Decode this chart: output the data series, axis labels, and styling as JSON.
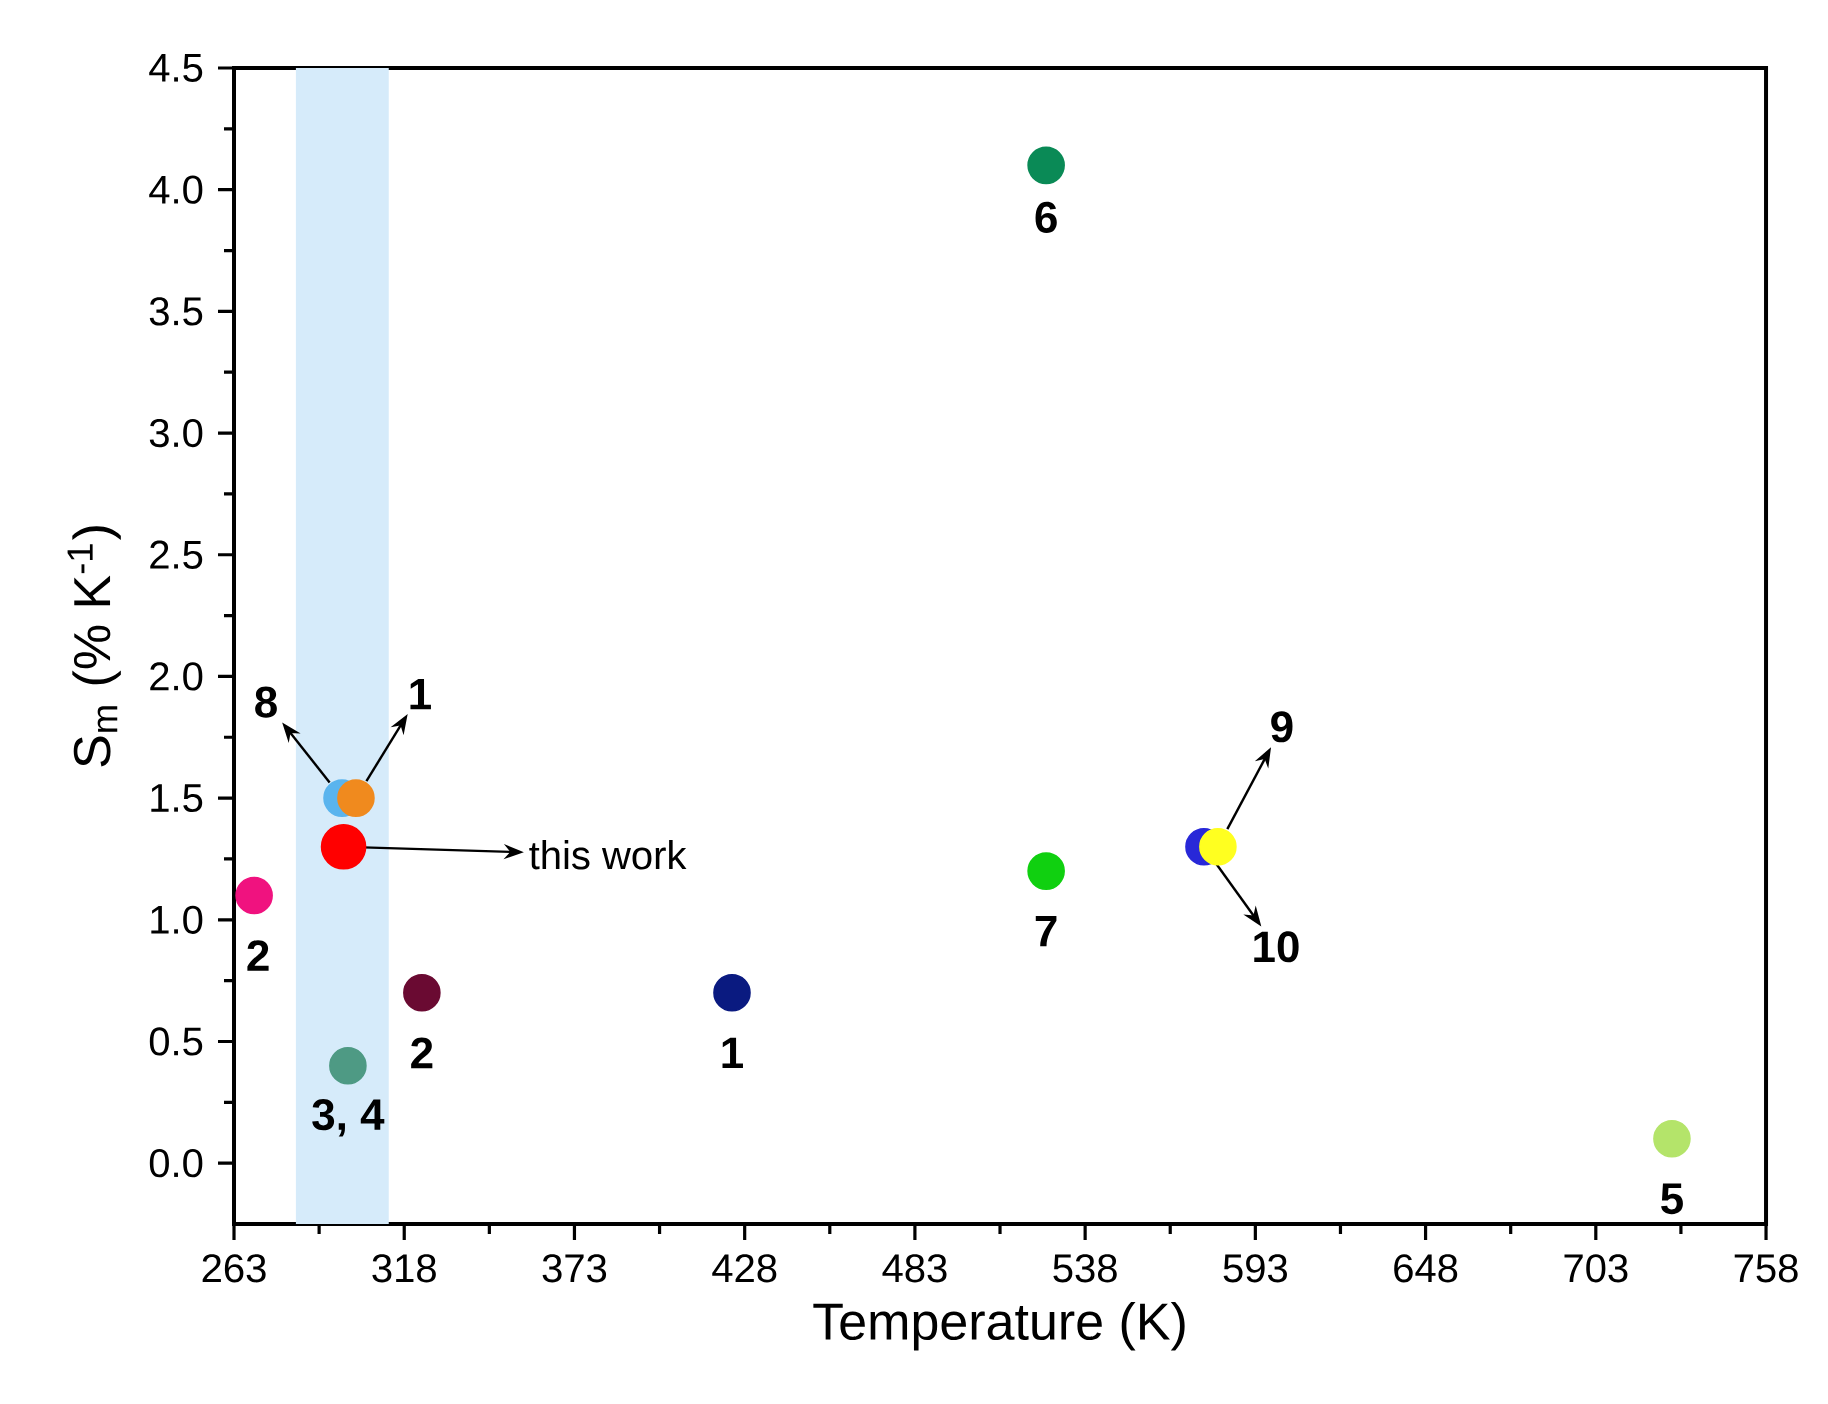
{
  "chart_data": {
    "type": "scatter",
    "xlabel": "Temperature (K)",
    "ylabel": "S$_{m}$ (% K$^{-1}$)",
    "x": [
      269.5,
      297.9,
      302.4,
      298.4,
      299.8,
      323.7,
      423.9,
      525.4,
      525.4,
      576.4,
      580.9,
      727.6
    ],
    "values": [
      1.1,
      1.5,
      1.5,
      1.3,
      0.4,
      0.7,
      0.7,
      4.1,
      1.2,
      1.3,
      1.3,
      0.1
    ],
    "colors": [
      "#f0127f",
      "#5ab4ee",
      "#f08a1e",
      "#ff0000",
      "#4e9a84",
      "#6a0a32",
      "#0a1a80",
      "#0a8a56",
      "#10d010",
      "#2828d8",
      "#ffff20",
      "#b4e46a"
    ],
    "marker": "circle",
    "grid": false,
    "xlim": [
      263,
      758
    ],
    "xticks": [
      263,
      318,
      373,
      428,
      483,
      538,
      593,
      648,
      703,
      758
    ],
    "ylim": [
      -0.25,
      4.5
    ],
    "yticks": [
      {
        "value": 0,
        "label": "0.0"
      },
      0.5,
      {
        "value": 1,
        "label": "1.0"
      },
      1.5,
      {
        "value": 2,
        "label": "2.0"
      },
      2.5,
      {
        "value": 3,
        "label": "3.0"
      },
      3.5,
      {
        "value": 4,
        "label": "4.0"
      },
      4.5
    ],
    "bands": [
      {
        "axis": "x",
        "from": 283,
        "to": 313,
        "color": "#d6ebfa"
      }
    ],
    "annotations": [
      {
        "text": "2",
        "x": 269.5,
        "y": 1.1
      },
      {
        "text": "8",
        "x": 297.9,
        "y": 1.5
      },
      {
        "text": "1",
        "x": 302.4,
        "y": 1.5
      },
      "this work",
      {
        "text": "3, 4",
        "x": 299.8,
        "y": 0.4
      },
      {
        "text": "2",
        "x": 323.7,
        "y": 0.7
      },
      {
        "text": "1",
        "x": 423.9,
        "y": 0.7
      },
      {
        "text": "6",
        "x": 525.4,
        "y": 4.1
      },
      {
        "text": "7",
        "x": 525.4,
        "y": 1.2
      },
      {
        "text": "10",
        "x": 576.4,
        "y": 1.3
      },
      {
        "text": "9",
        "x": 580.9,
        "y": 1.3
      },
      {
        "text": "5",
        "x": 727.6,
        "y": 0.1
      }
    ]
  }
}
